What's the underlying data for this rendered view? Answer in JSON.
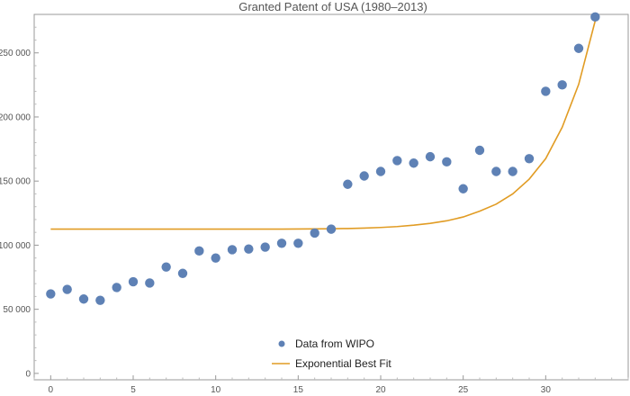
{
  "chart_data": {
    "type": "scatter",
    "title": "Granted Patent of USA (1980–2013)",
    "xlabel": "",
    "ylabel": "",
    "xlim": [
      -1,
      35
    ],
    "ylim": [
      -5000,
      280000
    ],
    "x_ticks": [
      0,
      5,
      10,
      15,
      20,
      25,
      30
    ],
    "y_ticks": [
      0,
      50000,
      100000,
      150000,
      200000,
      250000
    ],
    "y_tick_labels": [
      "0",
      "50 000",
      "100 000",
      "150 000",
      "200 000",
      "250 000"
    ],
    "grid": false,
    "legend_position": "bottom-center",
    "series": [
      {
        "name": "Data from WIPO",
        "kind": "scatter",
        "color": "#5e81b5",
        "x": [
          0,
          1,
          2,
          3,
          4,
          5,
          6,
          7,
          8,
          9,
          10,
          11,
          12,
          13,
          14,
          15,
          16,
          17,
          18,
          19,
          20,
          21,
          22,
          23,
          24,
          25,
          26,
          27,
          28,
          29,
          30,
          31,
          32,
          33
        ],
        "y": [
          62000,
          65500,
          58000,
          57000,
          67000,
          71500,
          70500,
          83000,
          78000,
          95500,
          90000,
          96500,
          97000,
          98500,
          101500,
          101500,
          109500,
          112500,
          147500,
          154000,
          157500,
          166000,
          164000,
          169000,
          165000,
          144000,
          174000,
          157500,
          157500,
          167500,
          220000,
          225000,
          253500,
          278000
        ]
      },
      {
        "name": "Exponential Best Fit",
        "kind": "line",
        "color": "#e19c24",
        "x": [
          0,
          1,
          2,
          3,
          4,
          5,
          6,
          7,
          8,
          9,
          10,
          11,
          12,
          13,
          14,
          15,
          16,
          17,
          18,
          19,
          20,
          21,
          22,
          23,
          24,
          25,
          26,
          27,
          28,
          29,
          30,
          31,
          32,
          33
        ],
        "y": [
          112500,
          112500,
          112500,
          112500,
          112500,
          112500,
          112500,
          112500,
          112500,
          112500,
          112500,
          112500,
          112500,
          112500,
          112500,
          112600,
          112700,
          112800,
          113000,
          113300,
          113800,
          114500,
          115600,
          117000,
          119000,
          122000,
          126500,
          132000,
          140000,
          151500,
          167500,
          192000,
          225500,
          275000
        ]
      }
    ]
  }
}
